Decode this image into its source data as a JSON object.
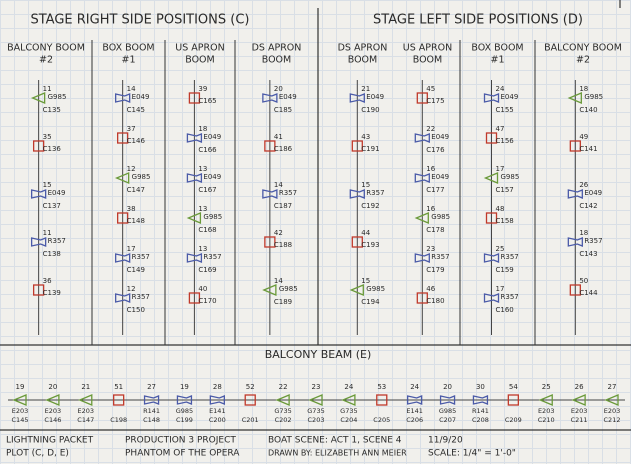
{
  "header": {
    "stage_right": "STAGE RIGHT SIDE POSITIONS (C)",
    "stage_left": "STAGE LEFT SIDE POSITIONS (D)"
  },
  "columns": [
    {
      "title": [
        "BALCONY BOOM",
        "#2"
      ],
      "instruments": [
        {
          "unit": "11",
          "gel": "G985",
          "circuit": "C135",
          "symbol": "triangle",
          "color": "#6a9a3a"
        },
        {
          "unit": "35",
          "circuit": "C136",
          "symbol": "square",
          "color": "#c0392b"
        },
        {
          "unit": "15",
          "gel": "E049",
          "circuit": "C137",
          "symbol": "vase",
          "color": "#4a5aa8"
        },
        {
          "unit": "11",
          "gel": "R357",
          "circuit": "C138",
          "symbol": "vase",
          "color": "#4a5aa8"
        },
        {
          "unit": "36",
          "circuit": "C139",
          "symbol": "square",
          "color": "#c0392b"
        }
      ]
    },
    {
      "title": [
        "BOX BOOM",
        "#1"
      ],
      "instruments": [
        {
          "unit": "14",
          "gel": "E049",
          "circuit": "C145",
          "symbol": "vase",
          "color": "#4a5aa8"
        },
        {
          "unit": "37",
          "circuit": "C146",
          "symbol": "square",
          "color": "#c0392b"
        },
        {
          "unit": "12",
          "gel": "G985",
          "circuit": "C147",
          "symbol": "triangle",
          "color": "#6a9a3a"
        },
        {
          "unit": "38",
          "circuit": "C148",
          "symbol": "square",
          "color": "#c0392b"
        },
        {
          "unit": "17",
          "gel": "R357",
          "circuit": "C149",
          "symbol": "vase",
          "color": "#4a5aa8"
        },
        {
          "unit": "12",
          "gel": "R357",
          "circuit": "C150",
          "symbol": "vase",
          "color": "#4a5aa8"
        }
      ]
    },
    {
      "title": [
        "US APRON",
        "BOOM"
      ],
      "instruments": [
        {
          "unit": "39",
          "circuit": "C165",
          "symbol": "square",
          "color": "#c0392b"
        },
        {
          "unit": "18",
          "gel": "E049",
          "circuit": "C166",
          "symbol": "vase",
          "color": "#4a5aa8"
        },
        {
          "unit": "13",
          "gel": "E049",
          "circuit": "C167",
          "symbol": "vase",
          "color": "#4a5aa8"
        },
        {
          "unit": "13",
          "gel": "G985",
          "circuit": "C168",
          "symbol": "triangle",
          "color": "#6a9a3a"
        },
        {
          "unit": "13",
          "gel": "R357",
          "circuit": "C169",
          "symbol": "vase",
          "color": "#4a5aa8"
        },
        {
          "unit": "40",
          "circuit": "C170",
          "symbol": "square",
          "color": "#c0392b"
        }
      ]
    },
    {
      "title": [
        "DS APRON",
        "BOOM"
      ],
      "instruments": [
        {
          "unit": "20",
          "gel": "E049",
          "circuit": "C185",
          "symbol": "vase",
          "color": "#4a5aa8"
        },
        {
          "unit": "41",
          "circuit": "C186",
          "symbol": "square",
          "color": "#c0392b"
        },
        {
          "unit": "14",
          "gel": "R357",
          "circuit": "C187",
          "symbol": "vase",
          "color": "#4a5aa8"
        },
        {
          "unit": "42",
          "circuit": "C188",
          "symbol": "square",
          "color": "#c0392b"
        },
        {
          "unit": "14",
          "gel": "G985",
          "circuit": "C189",
          "symbol": "triangle",
          "color": "#6a9a3a"
        }
      ]
    },
    {
      "title": [
        "DS APRON",
        "BOOM"
      ],
      "instruments": [
        {
          "unit": "21",
          "gel": "E049",
          "circuit": "C190",
          "symbol": "vase",
          "color": "#4a5aa8"
        },
        {
          "unit": "43",
          "circuit": "C191",
          "symbol": "square",
          "color": "#c0392b"
        },
        {
          "unit": "15",
          "gel": "R357",
          "circuit": "C192",
          "symbol": "vase",
          "color": "#4a5aa8"
        },
        {
          "unit": "44",
          "circuit": "C193",
          "symbol": "square",
          "color": "#c0392b"
        },
        {
          "unit": "15",
          "gel": "G985",
          "circuit": "C194",
          "symbol": "triangle",
          "color": "#6a9a3a"
        }
      ]
    },
    {
      "title": [
        "US APRON",
        "BOOM"
      ],
      "instruments": [
        {
          "unit": "45",
          "circuit": "C175",
          "symbol": "square",
          "color": "#c0392b"
        },
        {
          "unit": "22",
          "gel": "E049",
          "circuit": "C176",
          "symbol": "vase",
          "color": "#4a5aa8"
        },
        {
          "unit": "16",
          "gel": "E049",
          "circuit": "C177",
          "symbol": "vase",
          "color": "#4a5aa8"
        },
        {
          "unit": "16",
          "gel": "G985",
          "circuit": "C178",
          "symbol": "triangle",
          "color": "#6a9a3a"
        },
        {
          "unit": "23",
          "gel": "R357",
          "circuit": "C179",
          "symbol": "vase",
          "color": "#4a5aa8"
        },
        {
          "unit": "46",
          "circuit": "C180",
          "symbol": "square",
          "color": "#c0392b"
        }
      ]
    },
    {
      "title": [
        "BOX BOOM",
        "#1"
      ],
      "instruments": [
        {
          "unit": "24",
          "gel": "E049",
          "circuit": "C155",
          "symbol": "vase",
          "color": "#4a5aa8"
        },
        {
          "unit": "47",
          "circuit": "C156",
          "symbol": "square",
          "color": "#c0392b"
        },
        {
          "unit": "17",
          "gel": "G985",
          "circuit": "C157",
          "symbol": "triangle",
          "color": "#6a9a3a"
        },
        {
          "unit": "48",
          "circuit": "C158",
          "symbol": "square",
          "color": "#c0392b"
        },
        {
          "unit": "25",
          "gel": "R357",
          "circuit": "C159",
          "symbol": "vase",
          "color": "#4a5aa8"
        },
        {
          "unit": "17",
          "gel": "R357",
          "circuit": "C160",
          "symbol": "vase",
          "color": "#4a5aa8"
        }
      ]
    },
    {
      "title": [
        "BALCONY BOOM",
        "#2"
      ],
      "instruments": [
        {
          "unit": "18",
          "gel": "G985",
          "circuit": "C140",
          "symbol": "triangle",
          "color": "#6a9a3a"
        },
        {
          "unit": "49",
          "circuit": "C141",
          "symbol": "square",
          "color": "#c0392b"
        },
        {
          "unit": "26",
          "gel": "E049",
          "circuit": "C142",
          "symbol": "vase",
          "color": "#4a5aa8"
        },
        {
          "unit": "18",
          "gel": "R357",
          "circuit": "C143",
          "symbol": "vase",
          "color": "#4a5aa8"
        },
        {
          "unit": "50",
          "circuit": "C144",
          "symbol": "square",
          "color": "#c0392b"
        }
      ]
    }
  ],
  "balcony_beam": {
    "title": "BALCONY BEAM (E)",
    "instruments": [
      {
        "unit": "19",
        "gel": "E203",
        "circuit": "C145",
        "symbol": "triangle",
        "color": "#6a9a3a"
      },
      {
        "unit": "20",
        "gel": "E203",
        "circuit": "C146",
        "symbol": "triangle",
        "color": "#6a9a3a"
      },
      {
        "unit": "21",
        "gel": "E203",
        "circuit": "C147",
        "symbol": "triangle",
        "color": "#6a9a3a"
      },
      {
        "unit": "51",
        "circuit": "C198",
        "symbol": "square",
        "color": "#c0392b"
      },
      {
        "unit": "27",
        "gel": "R141",
        "circuit": "C148",
        "symbol": "vase",
        "color": "#4a5aa8"
      },
      {
        "unit": "19",
        "gel": "G985",
        "circuit": "C199",
        "symbol": "vase",
        "color": "#4a5aa8"
      },
      {
        "unit": "28",
        "gel": "E141",
        "circuit": "C200",
        "symbol": "vase",
        "color": "#4a5aa8"
      },
      {
        "unit": "52",
        "circuit": "C201",
        "symbol": "square",
        "color": "#c0392b"
      },
      {
        "unit": "22",
        "gel": "G735",
        "circuit": "C202",
        "symbol": "triangle",
        "color": "#6a9a3a"
      },
      {
        "unit": "23",
        "gel": "G735",
        "circuit": "C203",
        "symbol": "triangle",
        "color": "#6a9a3a"
      },
      {
        "unit": "24",
        "gel": "G735",
        "circuit": "C204",
        "symbol": "triangle",
        "color": "#6a9a3a"
      },
      {
        "unit": "53",
        "circuit": "C205",
        "symbol": "square",
        "color": "#c0392b"
      },
      {
        "unit": "24",
        "gel": "E141",
        "circuit": "C206",
        "symbol": "vase",
        "color": "#4a5aa8"
      },
      {
        "unit": "20",
        "gel": "G985",
        "circuit": "C207",
        "symbol": "vase",
        "color": "#4a5aa8"
      },
      {
        "unit": "30",
        "gel": "R141",
        "circuit": "C208",
        "symbol": "vase",
        "color": "#4a5aa8"
      },
      {
        "unit": "54",
        "circuit": "C209",
        "symbol": "square",
        "color": "#c0392b"
      },
      {
        "unit": "25",
        "gel": "E203",
        "circuit": "C210",
        "symbol": "triangle",
        "color": "#6a9a3a"
      },
      {
        "unit": "26",
        "gel": "E203",
        "circuit": "C211",
        "symbol": "triangle",
        "color": "#6a9a3a"
      },
      {
        "unit": "27",
        "gel": "E203",
        "circuit": "C212",
        "symbol": "triangle",
        "color": "#6a9a3a"
      }
    ]
  },
  "footer": {
    "packet": "LIGHTNING PACKET",
    "plot": "PLOT (C, D, E)",
    "production": "PRODUCTION 3 PROJECT",
    "show": "PHANTOM OF THE OPERA",
    "scene": "BOAT SCENE: ACT 1, SCENE 4",
    "drawn_by": "DRAWN BY: ELIZABETH ANN MEIER",
    "date": "11/9/20",
    "scale": "SCALE: 1/4\" = 1'-0\""
  }
}
